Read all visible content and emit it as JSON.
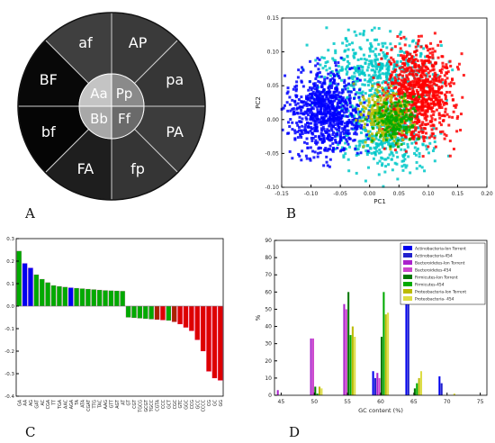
{
  "panel_labels": {
    "a": "A",
    "b": "B",
    "c": "C",
    "d": "D"
  },
  "chart_data": [
    {
      "type": "pie",
      "name": "genotype-wheel",
      "inner": [
        {
          "label": "Aa",
          "color": "#c4c4c4"
        },
        {
          "label": "Pp",
          "color": "#8a8a8a"
        },
        {
          "label": "Ff",
          "color": "#6a6a6a"
        },
        {
          "label": "Bb",
          "color": "#a8a8a8"
        }
      ],
      "outer": [
        {
          "label": "AP",
          "color": "#3a3a3a"
        },
        {
          "label": "pa",
          "color": "#363636"
        },
        {
          "label": "PA",
          "color": "#3c3c3c"
        },
        {
          "label": "fp",
          "color": "#353535"
        },
        {
          "label": "FA",
          "color": "#1e1e1e"
        },
        {
          "label": "bf",
          "color": "#050505"
        },
        {
          "label": "BF",
          "color": "#080808"
        },
        {
          "label": "af",
          "color": "#3f3f3f"
        }
      ]
    },
    {
      "type": "scatter",
      "xlabel": "PC1",
      "ylabel": "PC2",
      "xlim": [
        -0.15,
        0.2
      ],
      "ylim": [
        -0.1,
        0.15
      ],
      "xticks": [
        "-0.15",
        "-0.10",
        "-0.05",
        "0.00",
        "0.05",
        "0.10",
        "0.15",
        "0.20"
      ],
      "yticks": [
        "-0.10",
        "-0.05",
        "0.00",
        "0.05",
        "0.10",
        "0.15"
      ],
      "clusters": [
        {
          "color": "#00c8c8",
          "center": [
            0.01,
            0.065
          ],
          "spread": [
            0.045,
            0.03
          ],
          "count": 500
        },
        {
          "color": "#00c8c8",
          "center": [
            0.03,
            -0.03
          ],
          "spread": [
            0.04,
            0.025
          ],
          "count": 320
        },
        {
          "color": "#ff0000",
          "center": [
            0.085,
            0.04
          ],
          "spread": [
            0.03,
            0.035
          ],
          "count": 800
        },
        {
          "color": "#0000ff",
          "center": [
            -0.075,
            0.01
          ],
          "spread": [
            0.03,
            0.03
          ],
          "count": 800
        },
        {
          "color": "#bbbb00",
          "center": [
            0.03,
            0.005
          ],
          "spread": [
            0.022,
            0.018
          ],
          "count": 260
        },
        {
          "color": "#00aa00",
          "center": [
            0.045,
            0.0
          ],
          "spread": [
            0.02,
            0.018
          ],
          "count": 180
        }
      ]
    },
    {
      "type": "bar",
      "ylim": [
        -0.4,
        0.3
      ],
      "yticks": [
        "0.3",
        "0.2",
        "0.1",
        "0.0",
        "-0.1",
        "-0.2",
        "-0.3",
        "-0.4"
      ],
      "categories": [
        "GA",
        "AA",
        "AG",
        "GAT",
        "AC",
        "CGA",
        "TT",
        "TGA",
        "AAC",
        "AGA",
        "TA",
        "ATA",
        "CGAT",
        "TTG",
        "TAC",
        "AAG",
        "GTT",
        "AGT",
        "AT",
        "GT",
        "CGT",
        "TGCG",
        "GCGT",
        "TGCC",
        "CGTA",
        "CCC",
        "GCT",
        "CGC",
        "GTC",
        "GGC",
        "CCG",
        "GCC",
        "CCCC",
        "CG",
        "GC",
        "GG"
      ],
      "values": [
        0.245,
        0.19,
        0.17,
        0.14,
        0.12,
        0.105,
        0.092,
        0.088,
        0.085,
        0.082,
        0.08,
        0.078,
        0.076,
        0.074,
        0.072,
        0.07,
        0.069,
        0.068,
        0.067,
        -0.05,
        -0.052,
        -0.054,
        -0.056,
        -0.058,
        -0.06,
        -0.062,
        -0.064,
        -0.07,
        -0.08,
        -0.095,
        -0.11,
        -0.15,
        -0.2,
        -0.29,
        -0.32,
        -0.33
      ],
      "colors": [
        "#00aa00",
        "#0000ee",
        "#0000ee",
        "#00aa00",
        "#00aa00",
        "#00aa00",
        "#00aa00",
        "#00aa00",
        "#00aa00",
        "#0000ee",
        "#00aa00",
        "#00aa00",
        "#00aa00",
        "#00aa00",
        "#00aa00",
        "#00aa00",
        "#00aa00",
        "#00aa00",
        "#00aa00",
        "#00aa00",
        "#00aa00",
        "#00aa00",
        "#00aa00",
        "#00aa00",
        "#aa2200",
        "#dd0000",
        "#00aa00",
        "#aa2200",
        "#dd0000",
        "#dd0000",
        "#dd0000",
        "#dd0000",
        "#dd0000",
        "#dd0000",
        "#dd0000",
        "#dd0000"
      ]
    },
    {
      "type": "bar",
      "xlabel": "GC content (%)",
      "ylabel": "%",
      "xlim": [
        44,
        76
      ],
      "ylim": [
        0,
        90
      ],
      "xticks": [
        45,
        50,
        55,
        60,
        65,
        70,
        75
      ],
      "yticks": [
        0,
        10,
        20,
        30,
        40,
        50,
        60,
        70,
        80,
        90
      ],
      "bin_centers": [
        45,
        50,
        55,
        60,
        65,
        70
      ],
      "series": [
        {
          "name": "Actinobacteria-Ion Torrent",
          "color": "#0000ee",
          "values": [
            0,
            0,
            0,
            14,
            72,
            11
          ]
        },
        {
          "name": "Actinobacteria-454",
          "color": "#2222cc",
          "values": [
            0,
            0,
            0,
            10,
            81,
            7
          ]
        },
        {
          "name": "Bacteroidetes-Ion Torrent",
          "color": "#aa22cc",
          "values": [
            3,
            33,
            53,
            13,
            0,
            0
          ]
        },
        {
          "name": "Bacteroidetes-454",
          "color": "#cc44cc",
          "values": [
            0,
            33,
            50,
            10,
            0,
            0
          ]
        },
        {
          "name": "Firmicutes-Ion Torrent",
          "color": "#007700",
          "values": [
            0,
            5,
            60,
            34,
            4,
            0
          ]
        },
        {
          "name": "Firmicutes-454",
          "color": "#00aa00",
          "values": [
            0,
            1,
            35,
            60,
            7,
            0
          ]
        },
        {
          "name": "Proteobacteria-Ion Torrent",
          "color": "#bbbb00",
          "values": [
            0,
            5,
            40,
            47,
            10,
            0
          ]
        },
        {
          "name": "Proteobacteria- 454",
          "color": "#dddd44",
          "values": [
            0,
            4,
            34,
            48,
            14,
            1
          ]
        }
      ]
    }
  ]
}
